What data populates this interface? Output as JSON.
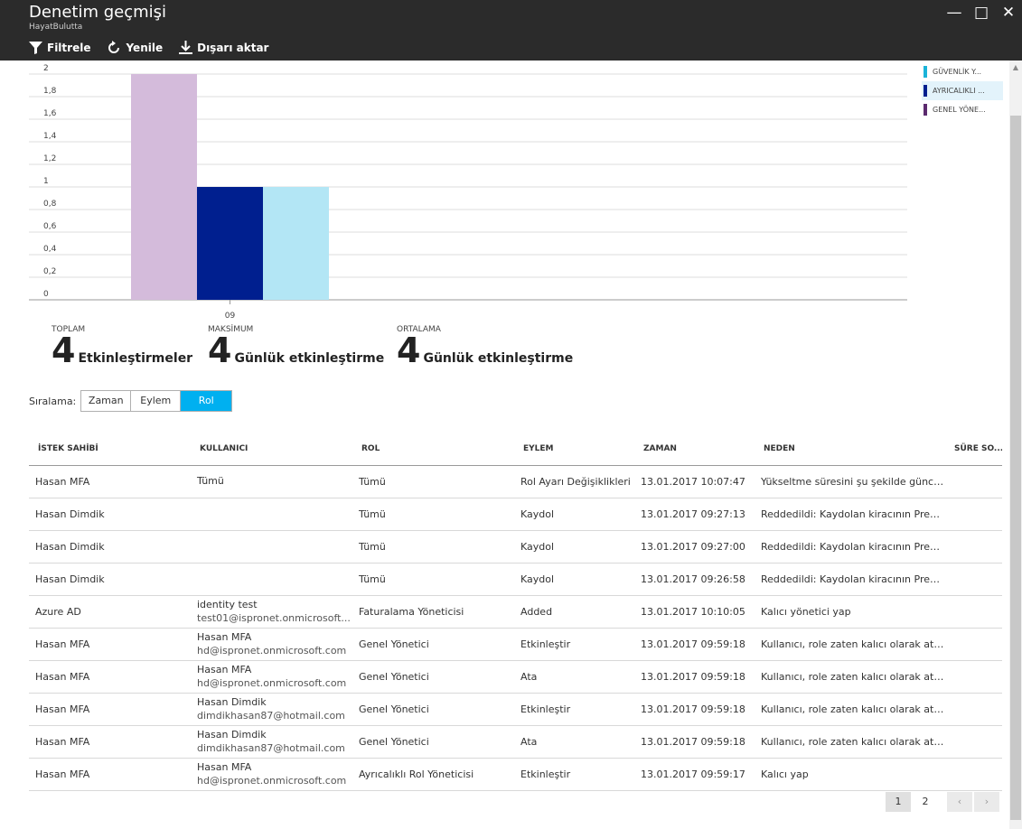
{
  "window": {
    "title": "Denetim geçmişi",
    "subtitle": "HayatBulutta",
    "minimize_glyph": "—",
    "maximize_glyph": "□",
    "close_glyph": "✕"
  },
  "toolbar": {
    "filter_label": "Filtrele",
    "refresh_label": "Yenile",
    "export_label": "Dışarı aktar"
  },
  "chart_data": {
    "type": "bar",
    "categories": [
      "09"
    ],
    "series": [
      {
        "name": "GENEL YÖNE...",
        "values": [
          2
        ],
        "color": "#d4bbdb"
      },
      {
        "name": "AYRICALIKLI ...",
        "values": [
          1
        ],
        "color": "#001f8f"
      },
      {
        "name": "GÜVENLİK Y...",
        "values": [
          1
        ],
        "color": "#b3e6f5"
      }
    ],
    "y_ticks": [
      "2",
      "1,8",
      "1,6",
      "1,4",
      "1,2",
      "1",
      "0,8",
      "0,6",
      "0,4",
      "0,2",
      "0"
    ],
    "ylim": [
      0,
      2
    ],
    "grid": true,
    "legend_placement": "top-right"
  },
  "legend": [
    {
      "label": "GÜVENLİK Y...",
      "color": "#1ab3d8",
      "active": false
    },
    {
      "label": "AYRICALIKLI ...",
      "color": "#001f8f",
      "active": true
    },
    {
      "label": "GENEL YÖNE...",
      "color": "#5b2a6e",
      "active": false
    }
  ],
  "stats": {
    "total": {
      "label": "TOPLAM",
      "value": "4",
      "unit": "Etkinleştirmeler"
    },
    "max": {
      "label": "MAKSİMUM",
      "value": "4",
      "unit": "Günlük etkinleştirme"
    },
    "avg": {
      "label": "ORTALAMA",
      "value": "4",
      "unit": "Günlük etkinleştirme"
    }
  },
  "sort": {
    "label": "Sıralama:",
    "options": [
      "Zaman",
      "Eylem",
      "Rol"
    ],
    "selected": "Rol"
  },
  "table": {
    "headers": [
      "İSTEK SAHİBİ",
      "KULLANICI",
      "ROL",
      "EYLEM",
      "ZAMAN",
      "NEDEN",
      "SÜRE SO..."
    ],
    "rows": [
      {
        "requester": "Hasan MFA",
        "user_name": "Tümü",
        "user_email": "",
        "role": "Tümü",
        "action": "Rol Ayarı Değişiklikleri",
        "time": "13.01.2017 10:07:47",
        "reason": "Yükseltme süresini şu şekilde güncel...",
        "duration": ""
      },
      {
        "requester": "Hasan Dimdik",
        "user_name": "",
        "user_email": "",
        "role": "Tümü",
        "action": "Kaydol",
        "time": "13.01.2017 09:27:13",
        "reason": "Reddedildi: Kaydolan kiracının Prem...",
        "duration": ""
      },
      {
        "requester": "Hasan Dimdik",
        "user_name": "",
        "user_email": "",
        "role": "Tümü",
        "action": "Kaydol",
        "time": "13.01.2017 09:27:00",
        "reason": "Reddedildi: Kaydolan kiracının Prem...",
        "duration": ""
      },
      {
        "requester": "Hasan Dimdik",
        "user_name": "",
        "user_email": "",
        "role": "Tümü",
        "action": "Kaydol",
        "time": "13.01.2017 09:26:58",
        "reason": "Reddedildi: Kaydolan kiracının Prem...",
        "duration": ""
      },
      {
        "requester": "Azure AD",
        "user_name": "identity test",
        "user_email": "test01@ispronet.onmicrosoft...",
        "role": "Faturalama Yöneticisi",
        "action": "Added",
        "time": "13.01.2017 10:10:05",
        "reason": "Kalıcı yönetici yap",
        "duration": ""
      },
      {
        "requester": "Hasan MFA",
        "user_name": "Hasan MFA",
        "user_email": "hd@ispronet.onmicrosoft.com",
        "role": "Genel Yönetici",
        "action": "Etkinleştir",
        "time": "13.01.2017 09:59:18",
        "reason": "Kullanıcı, role zaten kalıcı olarak ata...",
        "duration": ""
      },
      {
        "requester": "Hasan MFA",
        "user_name": "Hasan MFA",
        "user_email": "hd@ispronet.onmicrosoft.com",
        "role": "Genel Yönetici",
        "action": "Ata",
        "time": "13.01.2017 09:59:18",
        "reason": "Kullanıcı, role zaten kalıcı olarak ata...",
        "duration": ""
      },
      {
        "requester": "Hasan MFA",
        "user_name": "Hasan Dimdik",
        "user_email": "dimdikhasan87@hotmail.com",
        "role": "Genel Yönetici",
        "action": "Etkinleştir",
        "time": "13.01.2017 09:59:18",
        "reason": "Kullanıcı, role zaten kalıcı olarak ata...",
        "duration": ""
      },
      {
        "requester": "Hasan MFA",
        "user_name": "Hasan Dimdik",
        "user_email": "dimdikhasan87@hotmail.com",
        "role": "Genel Yönetici",
        "action": "Ata",
        "time": "13.01.2017 09:59:18",
        "reason": "Kullanıcı, role zaten kalıcı olarak ata...",
        "duration": ""
      },
      {
        "requester": "Hasan MFA",
        "user_name": "Hasan MFA",
        "user_email": "hd@ispronet.onmicrosoft.com",
        "role": "Ayrıcalıklı Rol Yöneticisi",
        "action": "Etkinleştir",
        "time": "13.01.2017 09:59:17",
        "reason": "Kalıcı yap",
        "duration": ""
      }
    ]
  },
  "pager": {
    "pages": [
      "1",
      "2"
    ],
    "current": "1",
    "prev_glyph": "‹",
    "next_glyph": "›"
  }
}
